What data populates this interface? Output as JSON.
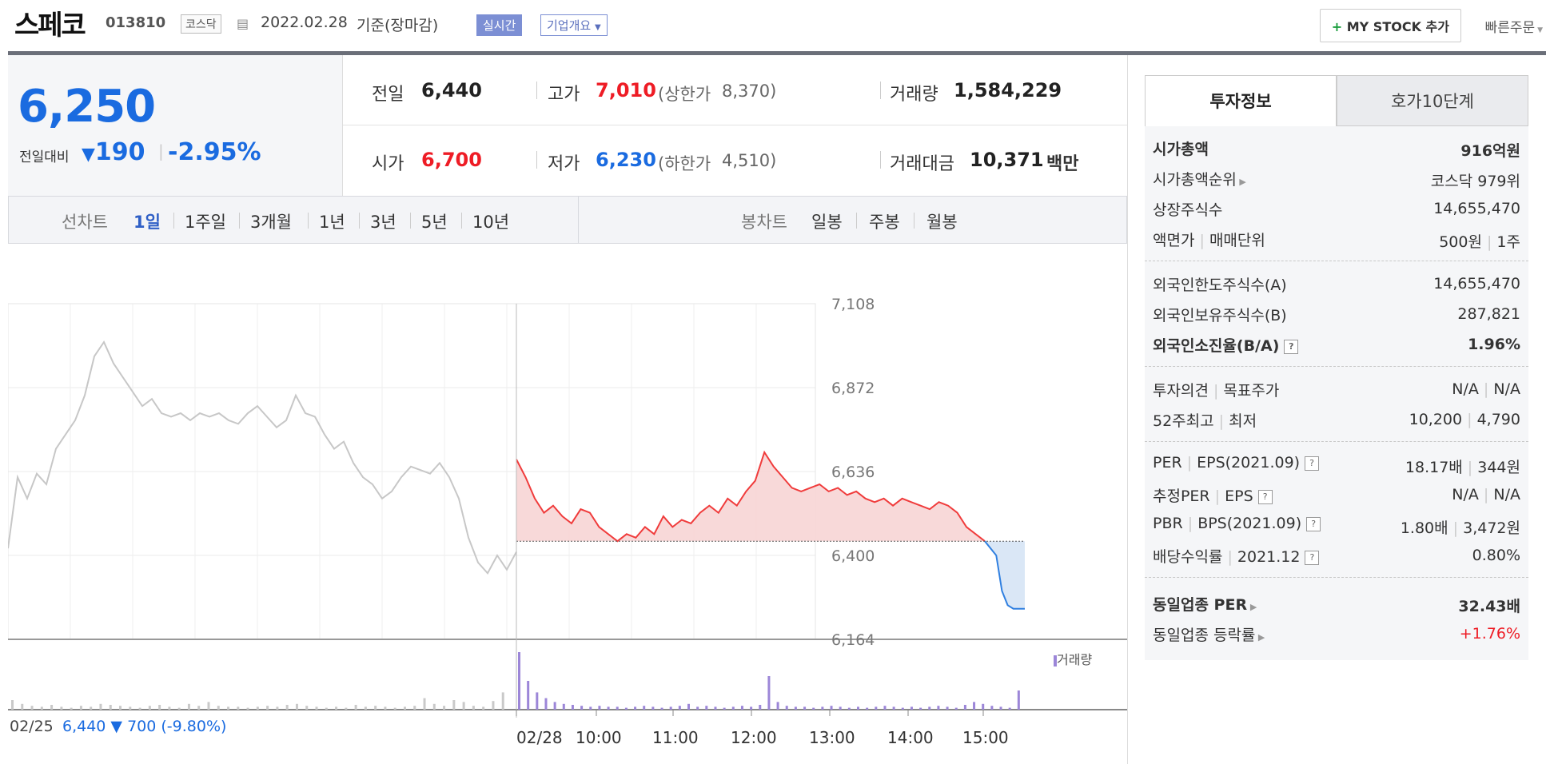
{
  "header": {
    "name": "스페코",
    "code": "013810",
    "market": "코스닥",
    "date": "2022.02.28",
    "date_suffix": "기준(장마감)",
    "realtime": "실시간",
    "company_overview": "기업개요",
    "mystock_label": "MY STOCK 추가",
    "quick_order": "빠른주문"
  },
  "price": {
    "current": "6,250",
    "diff_label": "전일대비",
    "diff_value": "190",
    "diff_pct": "-2.95%"
  },
  "stats": {
    "prev_close_label": "전일",
    "prev_close": "6,440",
    "high_label": "고가",
    "high": "7,010",
    "upper_limit_label": "(상한가",
    "upper_limit": "8,370)",
    "volume_label": "거래량",
    "volume": "1,584,229",
    "open_label": "시가",
    "open": "6,700",
    "low_label": "저가",
    "low": "6,230",
    "lower_limit_label": "(하한가",
    "lower_limit": "4,510)",
    "amount_label": "거래대금",
    "amount": "10,371",
    "amount_unit": "백만"
  },
  "tabs": {
    "line_label": "선차트",
    "line_items": [
      "1일",
      "1주일",
      "3개월",
      "1년",
      "3년",
      "5년",
      "10년"
    ],
    "candle_label": "봉차트",
    "candle_items": [
      "일봉",
      "주봉",
      "월봉"
    ]
  },
  "chart_data": {
    "type": "line",
    "y_ticks": [
      "7,108",
      "6,872",
      "6,636",
      "6,400",
      "6,164"
    ],
    "ylim": [
      6164,
      7108
    ],
    "x_ticks": [
      "02/28",
      "10:00",
      "11:00",
      "12:00",
      "13:00",
      "14:00",
      "15:00"
    ],
    "prev_day_label": "02/25",
    "prev_day_info": "6,440 ▼ 700 (-9.80%)",
    "volume_legend": "거래량",
    "prev_close": 6440,
    "colors": {
      "up": "#f03c3c",
      "down": "#2f7fe0",
      "prev": "#c7c7c7",
      "volume": "#9c86d8"
    },
    "series": [
      {
        "values": [
          6420,
          6620,
          6560,
          6630,
          6600,
          6700,
          6740,
          6780,
          6850,
          6960,
          7000,
          6940,
          6900,
          6860,
          6820,
          6840,
          6800,
          6790,
          6800,
          6780,
          6800,
          6790,
          6800,
          6780,
          6770,
          6800,
          6820,
          6790,
          6760,
          6780,
          6850,
          6800,
          6790,
          6740,
          6700,
          6720,
          6660,
          6620,
          6600,
          6560,
          6580,
          6620,
          6650,
          6640,
          6630,
          6660,
          6620,
          6560,
          6450,
          6380,
          6350,
          6400,
          6360,
          6410
        ]
      },
      {
        "values": [
          6670,
          6620,
          6560,
          6520,
          6540,
          6510,
          6490,
          6530,
          6520,
          6480,
          6460,
          6440,
          6460,
          6450,
          6480,
          6460,
          6510,
          6480,
          6500,
          6490,
          6520,
          6540,
          6520,
          6560,
          6540,
          6580,
          6610,
          6690,
          6650,
          6620,
          6590,
          6580,
          6590,
          6600,
          6580,
          6590,
          6570,
          6580,
          6560,
          6550,
          6560,
          6540,
          6560,
          6550,
          6540,
          6530,
          6550,
          6540,
          6520,
          6480,
          6460,
          6440
        ]
      },
      {
        "values": [
          6440,
          6420,
          6400,
          6300,
          6260,
          6250,
          6250,
          6250
        ]
      }
    ],
    "volume": {
      "prev": [
        10,
        6,
        4,
        3,
        5,
        3,
        2,
        4,
        3,
        6,
        5,
        4,
        3,
        2,
        4,
        5,
        3,
        2,
        6,
        4,
        8,
        4,
        3,
        3,
        2,
        3,
        4,
        3,
        5,
        6,
        4,
        3,
        2,
        3,
        2,
        5,
        3,
        4,
        3,
        2,
        3,
        4,
        12,
        6,
        4,
        10,
        8,
        4,
        3,
        9,
        18
      ],
      "today": [
        60,
        30,
        18,
        12,
        8,
        6,
        5,
        4,
        3,
        4,
        3,
        3,
        2,
        3,
        4,
        3,
        2,
        3,
        4,
        6,
        3,
        4,
        3,
        2,
        3,
        4,
        3,
        5,
        35,
        8,
        4,
        3,
        3,
        2,
        3,
        4,
        3,
        2,
        3,
        2,
        3,
        4,
        3,
        2,
        3,
        2,
        3,
        4,
        3,
        2,
        5,
        8,
        6,
        4,
        3,
        2,
        20
      ]
    }
  },
  "invest_info": {
    "tab_active": "투자정보",
    "tab_inactive": "호가10단계",
    "rows1": [
      {
        "k": "시가총액",
        "v": "916억원"
      },
      {
        "k": "시가총액순위",
        "v": "코스닥 979위"
      },
      {
        "k": "상장주식수",
        "v": "14,655,470"
      },
      {
        "k": "액면가",
        "k2": "매매단위",
        "v": "500원",
        "v2": "1주"
      }
    ],
    "rows2": [
      {
        "k": "외국인한도주식수(A)",
        "v": "14,655,470"
      },
      {
        "k": "외국인보유주식수(B)",
        "v": "287,821"
      },
      {
        "k": "외국인소진율(B/A)",
        "v": "1.96%"
      }
    ],
    "rows3": [
      {
        "k": "투자의견",
        "k2": "목표주가",
        "v": "N/A",
        "v2": "N/A"
      },
      {
        "k": "52주최고",
        "k2": "최저",
        "v": "10,200",
        "v2": "4,790"
      }
    ],
    "rows4": [
      {
        "k": "PER",
        "k2": "EPS(2021.09)",
        "v": "18.17배",
        "v2": "344원"
      },
      {
        "k": "추정PER",
        "k2": "EPS",
        "v": "N/A",
        "v2": "N/A"
      },
      {
        "k": "PBR",
        "k2": "BPS(2021.09)",
        "v": "1.80배",
        "v2": "3,472원"
      },
      {
        "k": "배당수익률",
        "k2": "2021.12",
        "v": "0.80%"
      }
    ],
    "rows5": [
      {
        "k": "동일업종 PER",
        "v": "32.43배"
      },
      {
        "k": "동일업종 등락률",
        "v": "+1.76%"
      }
    ]
  }
}
